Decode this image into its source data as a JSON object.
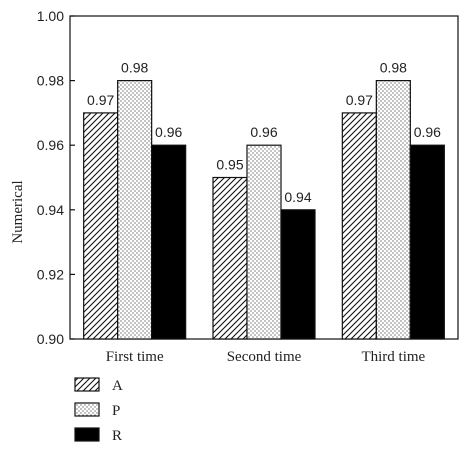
{
  "chart_data": {
    "type": "bar",
    "title": "",
    "xlabel": "",
    "ylabel": "Numerical",
    "categories": [
      "First time",
      "Second time",
      "Third time"
    ],
    "ylim": [
      0.9,
      1.0
    ],
    "yticks": [
      "0.90",
      "0.92",
      "0.94",
      "0.96",
      "0.98",
      "1.00"
    ],
    "grid": false,
    "legend_position": "bottom-left",
    "series": [
      {
        "name": "A",
        "values": [
          0.97,
          0.95,
          0.97
        ],
        "labels": [
          "0.97",
          "0.95",
          "0.97"
        ],
        "fill": "diagonal-hatch"
      },
      {
        "name": "P",
        "values": [
          0.98,
          0.96,
          0.98
        ],
        "labels": [
          "0.98",
          "0.96",
          "0.98"
        ],
        "fill": "dotted"
      },
      {
        "name": "R",
        "values": [
          0.96,
          0.94,
          0.96
        ],
        "labels": [
          "0.96",
          "0.94",
          "0.96"
        ],
        "fill": "solid-black"
      }
    ]
  }
}
